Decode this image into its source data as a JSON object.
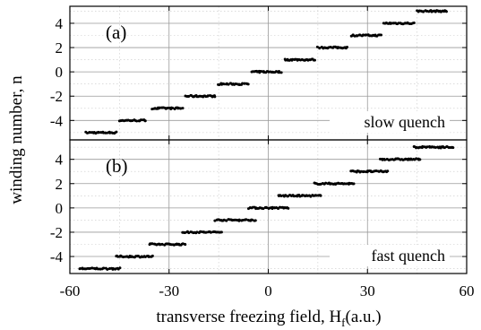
{
  "chart_data": {
    "type": "scatter",
    "xlabel": "transverse freezing field, H",
    "xlabel_sub": "f",
    "xlabel_unit": "(a.u.)",
    "ylabel": "winding number, n",
    "xlim": [
      -60,
      60
    ],
    "x_ticks": [
      -60,
      -30,
      0,
      30,
      60
    ],
    "x_tick_labels": [
      "-60",
      "-30",
      "0",
      "30",
      "60"
    ],
    "grid": true,
    "panels": [
      {
        "label": "(a)",
        "annotation": "slow quench",
        "ylim": [
          -5.6,
          5.4
        ],
        "y_ticks": [
          -4,
          -2,
          0,
          2,
          4
        ],
        "y_tick_labels": [
          "-4",
          "-2",
          "0",
          "2",
          "4"
        ],
        "plateaus": [
          {
            "n": -5,
            "x": [
              -55,
              -46
            ]
          },
          {
            "n": -4,
            "x": [
              -45,
              -37
            ]
          },
          {
            "n": -3,
            "x": [
              -35,
              -26
            ]
          },
          {
            "n": -2,
            "x": [
              -25,
              -16
            ]
          },
          {
            "n": -1,
            "x": [
              -15,
              -6
            ]
          },
          {
            "n": 0,
            "x": [
              -5,
              4
            ]
          },
          {
            "n": 1,
            "x": [
              5,
              14
            ]
          },
          {
            "n": 2,
            "x": [
              15,
              24
            ]
          },
          {
            "n": 3,
            "x": [
              25,
              34
            ]
          },
          {
            "n": 4,
            "x": [
              35,
              44
            ]
          },
          {
            "n": 5,
            "x": [
              45,
              54
            ]
          }
        ]
      },
      {
        "label": "(b)",
        "annotation": "fast quench",
        "ylim": [
          -5.4,
          5.6
        ],
        "y_ticks": [
          -4,
          -2,
          0,
          2,
          4
        ],
        "y_tick_labels": [
          "-4",
          "-2",
          "0",
          "2",
          "4"
        ],
        "plateaus": [
          {
            "n": -5,
            "x": [
              -57,
              -45
            ]
          },
          {
            "n": -4,
            "x": [
              -46,
              -35
            ]
          },
          {
            "n": -3,
            "x": [
              -36,
              -25
            ]
          },
          {
            "n": -2,
            "x": [
              -26,
              -14
            ]
          },
          {
            "n": -1,
            "x": [
              -16,
              -4
            ]
          },
          {
            "n": 0,
            "x": [
              -6,
              6
            ]
          },
          {
            "n": 1,
            "x": [
              3,
              16
            ]
          },
          {
            "n": 2,
            "x": [
              14,
              26
            ]
          },
          {
            "n": 3,
            "x": [
              25,
              36
            ]
          },
          {
            "n": 4,
            "x": [
              34,
              46
            ]
          },
          {
            "n": 5,
            "x": [
              44,
              56
            ]
          }
        ]
      }
    ]
  }
}
